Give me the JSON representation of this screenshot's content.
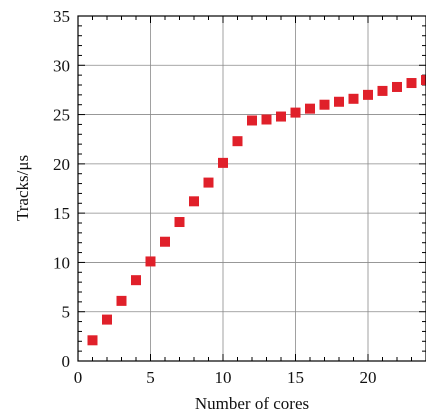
{
  "chart_data": {
    "type": "scatter",
    "title": "",
    "xlabel": "Number of cores",
    "ylabel": "Tracks/μs",
    "xlim": [
      0,
      24
    ],
    "ylim": [
      0,
      35
    ],
    "xticks": [
      0,
      5,
      10,
      15,
      20
    ],
    "yticks": [
      0,
      5,
      10,
      15,
      20,
      25,
      30,
      35
    ],
    "grid": true,
    "marker": "square",
    "color": "#e0202a",
    "series": [
      {
        "x": [
          1,
          2,
          3,
          4,
          5,
          6,
          7,
          8,
          9,
          10,
          11,
          12,
          13,
          14,
          15,
          16,
          17,
          18,
          19,
          20,
          21,
          22,
          23,
          24
        ],
        "y": [
          2.1,
          4.2,
          6.1,
          8.2,
          10.1,
          12.1,
          14.1,
          16.2,
          18.1,
          20.1,
          22.3,
          24.4,
          24.5,
          24.8,
          25.2,
          25.6,
          26.0,
          26.3,
          26.6,
          27.0,
          27.4,
          27.8,
          28.2,
          28.5
        ]
      }
    ]
  }
}
